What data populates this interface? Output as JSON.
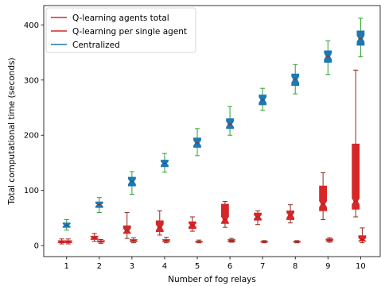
{
  "chart_data": {
    "type": "box",
    "title": "",
    "xlabel": "Number of fog relays",
    "ylabel": "Total computational time (seconds)",
    "x_ticks": [
      "1",
      "2",
      "3",
      "4",
      "5",
      "6",
      "7",
      "8",
      "9",
      "10"
    ],
    "y_ticks": [
      0,
      100,
      200,
      300,
      400
    ],
    "xlim": [
      0.3,
      10.6
    ],
    "ylim": [
      -20,
      435
    ],
    "legend_position": "top-left",
    "series": [
      {
        "name": "Q-learning agents total",
        "color": "#d62728",
        "whisker_color": "#8c2a1e",
        "offset": -0.15,
        "boxes": [
          {
            "x": 1,
            "min": 3,
            "q1": 5,
            "median": 7,
            "q3": 9,
            "max": 12
          },
          {
            "x": 2,
            "min": 8,
            "q1": 11,
            "median": 14,
            "q3": 17,
            "max": 22
          },
          {
            "x": 3,
            "min": 13,
            "q1": 22,
            "median": 27,
            "q3": 36,
            "max": 60
          },
          {
            "x": 4,
            "min": 19,
            "q1": 25,
            "median": 33,
            "q3": 45,
            "max": 63
          },
          {
            "x": 5,
            "min": 26,
            "q1": 31,
            "median": 37,
            "q3": 43,
            "max": 52
          },
          {
            "x": 6,
            "min": 33,
            "q1": 40,
            "median": 47,
            "q3": 75,
            "max": 80
          },
          {
            "x": 7,
            "min": 38,
            "q1": 46,
            "median": 52,
            "q3": 59,
            "max": 63
          },
          {
            "x": 8,
            "min": 41,
            "q1": 47,
            "median": 55,
            "q3": 63,
            "max": 74
          },
          {
            "x": 9,
            "min": 47,
            "q1": 63,
            "median": 75,
            "q3": 108,
            "max": 132
          },
          {
            "x": 10,
            "min": 52,
            "q1": 66,
            "median": 80,
            "q3": 184,
            "max": 318
          }
        ]
      },
      {
        "name": "Q-learning per single agent",
        "color": "#d62728",
        "whisker_color": "#8c2a1e",
        "offset": 0.05,
        "boxes": [
          {
            "x": 1,
            "min": 3,
            "q1": 5,
            "median": 7,
            "q3": 9,
            "max": 12
          },
          {
            "x": 2,
            "min": 4,
            "q1": 6,
            "median": 7,
            "q3": 9,
            "max": 11
          },
          {
            "x": 3,
            "min": 5,
            "q1": 7,
            "median": 9,
            "q3": 11,
            "max": 14
          },
          {
            "x": 4,
            "min": 5,
            "q1": 7,
            "median": 9,
            "q3": 11,
            "max": 15
          },
          {
            "x": 5,
            "min": 5,
            "q1": 6,
            "median": 7,
            "q3": 8,
            "max": 10
          },
          {
            "x": 6,
            "min": 6,
            "q1": 7,
            "median": 9,
            "q3": 11,
            "max": 13
          },
          {
            "x": 7,
            "min": 5,
            "q1": 6,
            "median": 7,
            "q3": 8,
            "max": 9
          },
          {
            "x": 8,
            "min": 5,
            "q1": 6,
            "median": 7,
            "q3": 8,
            "max": 9
          },
          {
            "x": 9,
            "min": 6,
            "q1": 8,
            "median": 10,
            "q3": 12,
            "max": 14
          },
          {
            "x": 10,
            "min": 5,
            "q1": 8,
            "median": 11,
            "q3": 18,
            "max": 32
          }
        ]
      },
      {
        "name": "Centralized",
        "color": "#1f77b4",
        "whisker_color": "#2ca02c",
        "offset": 0,
        "boxes": [
          {
            "x": 1,
            "min": 28,
            "q1": 33,
            "median": 37,
            "q3": 41,
            "max": 47
          },
          {
            "x": 2,
            "min": 60,
            "q1": 69,
            "median": 74,
            "q3": 79,
            "max": 87
          },
          {
            "x": 3,
            "min": 93,
            "q1": 108,
            "median": 116,
            "q3": 124,
            "max": 134
          },
          {
            "x": 4,
            "min": 133,
            "q1": 143,
            "median": 149,
            "q3": 155,
            "max": 167
          },
          {
            "x": 5,
            "min": 163,
            "q1": 178,
            "median": 186,
            "q3": 195,
            "max": 212
          },
          {
            "x": 6,
            "min": 200,
            "q1": 212,
            "median": 220,
            "q3": 230,
            "max": 252
          },
          {
            "x": 7,
            "min": 245,
            "q1": 255,
            "median": 264,
            "q3": 273,
            "max": 285
          },
          {
            "x": 8,
            "min": 275,
            "q1": 290,
            "median": 301,
            "q3": 311,
            "max": 328
          },
          {
            "x": 9,
            "min": 310,
            "q1": 332,
            "median": 343,
            "q3": 353,
            "max": 371
          },
          {
            "x": 10,
            "min": 342,
            "q1": 363,
            "median": 375,
            "q3": 389,
            "max": 412
          }
        ]
      }
    ]
  }
}
